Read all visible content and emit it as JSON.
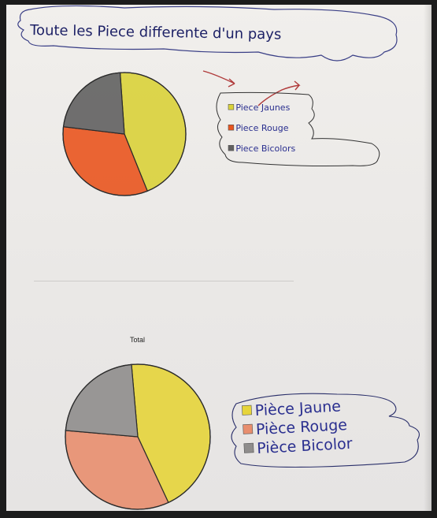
{
  "title": "Toute les Piece differente d'un pays",
  "chart_data": [
    {
      "type": "pie",
      "title": "",
      "labels": [
        "Piece Jaunes",
        "Piece Rouge",
        "Piece Bicolors"
      ],
      "values": [
        45,
        33,
        22
      ],
      "colors": [
        "#d9d23a",
        "#e9551f",
        "#616060"
      ],
      "legend_placement": "right"
    },
    {
      "type": "pie",
      "title": "Total",
      "labels": [
        "Pièce Jaune",
        "Pièce Rouge",
        "Pièce Bicolor"
      ],
      "values": [
        40,
        30,
        20
      ],
      "colors": [
        "#e6d43a",
        "#e88e6e",
        "#8f8d8c"
      ],
      "legend_placement": "right"
    }
  ]
}
